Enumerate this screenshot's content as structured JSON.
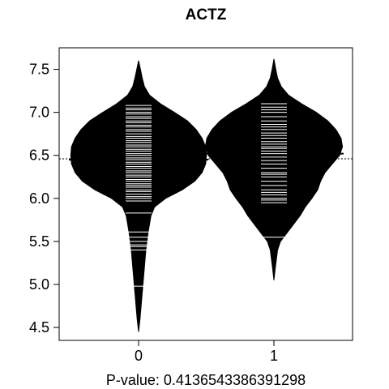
{
  "chart_data": {
    "type": "beanplot",
    "title": "ACTZ",
    "xlabel": "P-value: 0.413654338639129​8",
    "ylabel": "",
    "ylim": [
      4.35,
      7.75
    ],
    "y_ticks": [
      4.5,
      5.0,
      5.5,
      6.0,
      6.5,
      7.0,
      7.5
    ],
    "y_tick_labels": [
      "4.5",
      "5.0",
      "5.5",
      "6.0",
      "6.5",
      "7.0",
      "7.5"
    ],
    "categories": [
      "0",
      "1"
    ],
    "overall_mean": 6.46,
    "grid": false,
    "groups": [
      {
        "label": "0",
        "mean": 6.45,
        "density_profile": [
          [
            4.45,
            0.0
          ],
          [
            4.6,
            0.02
          ],
          [
            4.8,
            0.04
          ],
          [
            5.0,
            0.06
          ],
          [
            5.2,
            0.08
          ],
          [
            5.4,
            0.1
          ],
          [
            5.6,
            0.13
          ],
          [
            5.8,
            0.17
          ],
          [
            5.9,
            0.22
          ],
          [
            6.0,
            0.37
          ],
          [
            6.1,
            0.6
          ],
          [
            6.2,
            0.77
          ],
          [
            6.3,
            0.87
          ],
          [
            6.4,
            0.92
          ],
          [
            6.5,
            0.93
          ],
          [
            6.6,
            0.92
          ],
          [
            6.7,
            0.87
          ],
          [
            6.8,
            0.79
          ],
          [
            6.9,
            0.67
          ],
          [
            7.0,
            0.49
          ],
          [
            7.1,
            0.3
          ],
          [
            7.2,
            0.15
          ],
          [
            7.3,
            0.08
          ],
          [
            7.4,
            0.05
          ],
          [
            7.5,
            0.025
          ],
          [
            7.6,
            0.0
          ]
        ],
        "points": [
          4.98,
          5.4,
          5.44,
          5.46,
          5.5,
          5.55,
          5.61,
          5.83,
          5.97,
          6.0,
          6.02,
          6.05,
          6.08,
          6.1,
          6.13,
          6.15,
          6.17,
          6.2,
          6.22,
          6.25,
          6.27,
          6.3,
          6.32,
          6.35,
          6.37,
          6.4,
          6.42,
          6.45,
          6.47,
          6.5,
          6.52,
          6.55,
          6.57,
          6.6,
          6.62,
          6.65,
          6.67,
          6.7,
          6.72,
          6.75,
          6.78,
          6.8,
          6.83,
          6.85,
          6.88,
          6.9,
          6.93,
          6.95,
          6.98,
          7.0,
          7.03,
          7.05,
          7.08
        ]
      },
      {
        "label": "1",
        "mean": 6.52,
        "density_profile": [
          [
            5.05,
            0.0
          ],
          [
            5.2,
            0.02
          ],
          [
            5.4,
            0.05
          ],
          [
            5.5,
            0.09
          ],
          [
            5.6,
            0.18
          ],
          [
            5.7,
            0.27
          ],
          [
            5.8,
            0.36
          ],
          [
            5.9,
            0.43
          ],
          [
            6.0,
            0.52
          ],
          [
            6.1,
            0.6
          ],
          [
            6.2,
            0.64
          ],
          [
            6.3,
            0.7
          ],
          [
            6.4,
            0.8
          ],
          [
            6.5,
            0.9
          ],
          [
            6.6,
            0.94
          ],
          [
            6.7,
            0.92
          ],
          [
            6.8,
            0.85
          ],
          [
            6.9,
            0.74
          ],
          [
            7.0,
            0.58
          ],
          [
            7.1,
            0.38
          ],
          [
            7.2,
            0.2
          ],
          [
            7.3,
            0.1
          ],
          [
            7.4,
            0.05
          ],
          [
            7.5,
            0.025
          ],
          [
            7.62,
            0.0
          ]
        ],
        "points": [
          5.55,
          5.95,
          5.98,
          6.0,
          6.04,
          6.07,
          6.1,
          6.15,
          6.2,
          6.25,
          6.28,
          6.3,
          6.35,
          6.4,
          6.44,
          6.48,
          6.52,
          6.55,
          6.58,
          6.6,
          6.63,
          6.66,
          6.7,
          6.73,
          6.76,
          6.8,
          6.83,
          6.86,
          6.9,
          6.95,
          7.0,
          7.03,
          7.06,
          7.1
        ]
      }
    ]
  },
  "colors": {
    "bean_fill": "#000000",
    "bean_line": "#ffffff",
    "axis": "#000000",
    "background": "#ffffff"
  }
}
